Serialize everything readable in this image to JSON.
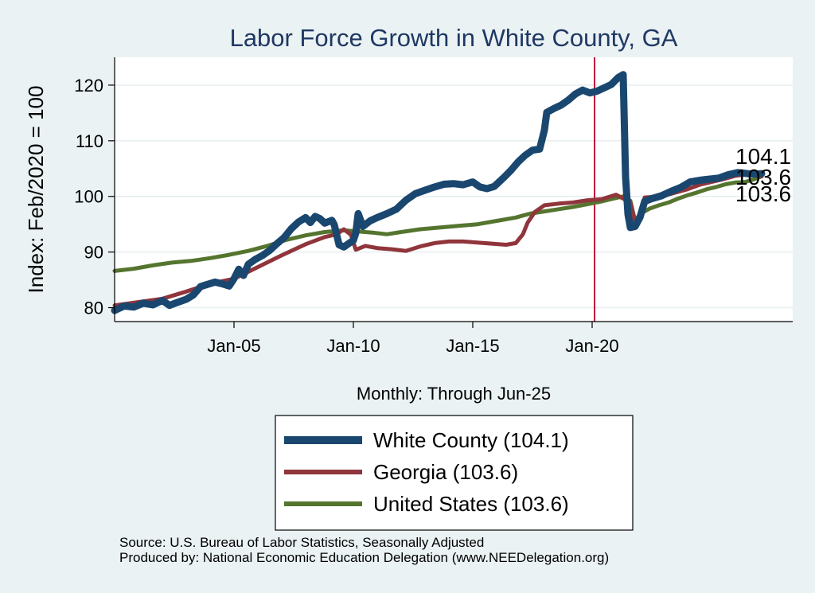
{
  "chart_data": {
    "type": "line",
    "title": "Labor Force Growth in White  County, GA",
    "ylabel": "Index: Feb/2020 = 100",
    "xlabel": "Monthly: Through Jun-25",
    "xlim": [
      2000.0,
      2028.4
    ],
    "ylim": [
      77.5,
      125
    ],
    "yticks": [
      80,
      90,
      100,
      110,
      120
    ],
    "xticks": [
      {
        "x": 2005,
        "label": "Jan-05"
      },
      {
        "x": 2010,
        "label": "Jan-10"
      },
      {
        "x": 2015,
        "label": "Jan-15"
      },
      {
        "x": 2020,
        "label": "Jan-20"
      }
    ],
    "vline": {
      "x": 2020.1,
      "color": "#c0143c"
    },
    "grid": true,
    "legend_position": "bottom",
    "series": [
      {
        "name": "White  County (104.1)",
        "end_label": "104.1",
        "color": "#1a476f",
        "width": 9,
        "points": [
          [
            2000.0,
            79.5
          ],
          [
            2000.4,
            80.3
          ],
          [
            2000.8,
            80.1
          ],
          [
            2001.2,
            80.8
          ],
          [
            2001.6,
            80.5
          ],
          [
            2002.0,
            81.3
          ],
          [
            2002.3,
            80.4
          ],
          [
            2002.6,
            80.9
          ],
          [
            2003.0,
            81.5
          ],
          [
            2003.3,
            82.3
          ],
          [
            2003.6,
            83.8
          ],
          [
            2003.9,
            84.2
          ],
          [
            2004.2,
            84.6
          ],
          [
            2004.5,
            84.3
          ],
          [
            2004.8,
            83.9
          ],
          [
            2005.0,
            85.2
          ],
          [
            2005.2,
            86.9
          ],
          [
            2005.4,
            85.8
          ],
          [
            2005.6,
            87.8
          ],
          [
            2005.9,
            88.7
          ],
          [
            2006.2,
            89.4
          ],
          [
            2006.5,
            90.3
          ],
          [
            2006.8,
            91.5
          ],
          [
            2007.1,
            92.6
          ],
          [
            2007.4,
            94.2
          ],
          [
            2007.7,
            95.4
          ],
          [
            2008.0,
            96.2
          ],
          [
            2008.2,
            95.3
          ],
          [
            2008.4,
            96.4
          ],
          [
            2008.6,
            96.0
          ],
          [
            2008.8,
            95.2
          ],
          [
            2009.1,
            95.7
          ],
          [
            2009.2,
            94.9
          ],
          [
            2009.4,
            91.3
          ],
          [
            2009.6,
            90.9
          ],
          [
            2009.8,
            91.5
          ],
          [
            2010.0,
            92.1
          ],
          [
            2010.1,
            93.4
          ],
          [
            2010.2,
            96.9
          ],
          [
            2010.4,
            94.6
          ],
          [
            2010.7,
            95.6
          ],
          [
            2011.0,
            96.2
          ],
          [
            2011.4,
            96.9
          ],
          [
            2011.8,
            97.7
          ],
          [
            2012.2,
            99.3
          ],
          [
            2012.6,
            100.5
          ],
          [
            2013.0,
            101.1
          ],
          [
            2013.4,
            101.7
          ],
          [
            2013.8,
            102.2
          ],
          [
            2014.2,
            102.3
          ],
          [
            2014.6,
            102.1
          ],
          [
            2015.0,
            102.6
          ],
          [
            2015.3,
            101.7
          ],
          [
            2015.6,
            101.4
          ],
          [
            2015.9,
            101.8
          ],
          [
            2016.3,
            103.4
          ],
          [
            2016.6,
            104.7
          ],
          [
            2016.9,
            106.2
          ],
          [
            2017.2,
            107.4
          ],
          [
            2017.5,
            108.3
          ],
          [
            2017.8,
            108.5
          ],
          [
            2018.0,
            111.9
          ],
          [
            2018.1,
            115.1
          ],
          [
            2018.4,
            115.8
          ],
          [
            2018.7,
            116.4
          ],
          [
            2019.0,
            117.3
          ],
          [
            2019.3,
            118.4
          ],
          [
            2019.6,
            119.1
          ],
          [
            2019.9,
            118.6
          ],
          [
            2020.2,
            118.9
          ],
          [
            2020.5,
            119.5
          ],
          [
            2020.8,
            120.1
          ],
          [
            2021.1,
            121.4
          ],
          [
            2021.3,
            121.9
          ],
          [
            2021.4,
            103.5
          ],
          [
            2021.5,
            96.8
          ],
          [
            2021.6,
            94.4
          ],
          [
            2021.8,
            94.6
          ],
          [
            2022.0,
            96.2
          ],
          [
            2022.2,
            99.1
          ],
          [
            2022.5,
            99.6
          ],
          [
            2022.9,
            100.1
          ],
          [
            2023.3,
            100.9
          ],
          [
            2023.7,
            101.6
          ],
          [
            2024.1,
            102.6
          ],
          [
            2024.5,
            102.9
          ],
          [
            2024.9,
            103.1
          ],
          [
            2025.3,
            103.3
          ],
          [
            2025.7,
            103.9
          ],
          [
            2026.1,
            104.3
          ],
          [
            2026.5,
            104.1
          ],
          [
            2026.9,
            104.0
          ],
          [
            2027.1,
            104.1
          ]
        ]
      },
      {
        "name": "Georgia (103.6)",
        "end_label": "103.6",
        "color": "#90353b",
        "width": 5,
        "points": [
          [
            2000.0,
            80.4
          ],
          [
            2001.0,
            81.0
          ],
          [
            2002.0,
            81.6
          ],
          [
            2003.0,
            82.9
          ],
          [
            2004.0,
            84.3
          ],
          [
            2005.0,
            85.2
          ],
          [
            2006.0,
            87.3
          ],
          [
            2007.0,
            89.4
          ],
          [
            2008.0,
            91.4
          ],
          [
            2008.8,
            92.7
          ],
          [
            2009.3,
            93.2
          ],
          [
            2009.6,
            94.1
          ],
          [
            2009.9,
            93.1
          ],
          [
            2010.1,
            90.4
          ],
          [
            2010.5,
            91.1
          ],
          [
            2011.0,
            90.7
          ],
          [
            2011.6,
            90.5
          ],
          [
            2012.2,
            90.2
          ],
          [
            2012.8,
            91.0
          ],
          [
            2013.4,
            91.6
          ],
          [
            2014.0,
            91.9
          ],
          [
            2014.6,
            91.9
          ],
          [
            2015.2,
            91.7
          ],
          [
            2015.8,
            91.5
          ],
          [
            2016.4,
            91.3
          ],
          [
            2016.8,
            91.6
          ],
          [
            2017.1,
            93.2
          ],
          [
            2017.3,
            95.3
          ],
          [
            2017.6,
            97.2
          ],
          [
            2018.0,
            98.4
          ],
          [
            2018.6,
            98.7
          ],
          [
            2019.2,
            98.9
          ],
          [
            2019.8,
            99.3
          ],
          [
            2020.4,
            99.5
          ],
          [
            2021.0,
            100.3
          ],
          [
            2021.6,
            98.9
          ],
          [
            2021.8,
            95.1
          ],
          [
            2022.0,
            96.8
          ],
          [
            2022.2,
            99.8
          ],
          [
            2022.6,
            99.9
          ],
          [
            2023.0,
            100.1
          ],
          [
            2023.5,
            100.7
          ],
          [
            2024.0,
            101.3
          ],
          [
            2024.5,
            102.1
          ],
          [
            2025.0,
            102.6
          ],
          [
            2025.5,
            103.1
          ],
          [
            2026.0,
            103.7
          ],
          [
            2026.5,
            104.0
          ],
          [
            2026.9,
            103.7
          ],
          [
            2027.1,
            103.6
          ]
        ]
      },
      {
        "name": "United States (103.6)",
        "end_label": "103.6",
        "color": "#55752f",
        "width": 5,
        "points": [
          [
            2000.0,
            86.6
          ],
          [
            2000.8,
            87.0
          ],
          [
            2001.6,
            87.6
          ],
          [
            2002.4,
            88.1
          ],
          [
            2003.2,
            88.4
          ],
          [
            2004.0,
            88.9
          ],
          [
            2004.8,
            89.5
          ],
          [
            2005.6,
            90.2
          ],
          [
            2006.4,
            91.1
          ],
          [
            2007.2,
            92.2
          ],
          [
            2008.0,
            93.0
          ],
          [
            2008.8,
            93.6
          ],
          [
            2009.6,
            93.9
          ],
          [
            2010.2,
            93.7
          ],
          [
            2010.8,
            93.5
          ],
          [
            2011.4,
            93.2
          ],
          [
            2012.0,
            93.6
          ],
          [
            2012.8,
            94.1
          ],
          [
            2013.6,
            94.4
          ],
          [
            2014.4,
            94.7
          ],
          [
            2015.2,
            95.0
          ],
          [
            2016.0,
            95.6
          ],
          [
            2016.8,
            96.2
          ],
          [
            2017.4,
            96.9
          ],
          [
            2018.0,
            97.3
          ],
          [
            2018.6,
            97.7
          ],
          [
            2019.2,
            98.1
          ],
          [
            2019.8,
            98.6
          ],
          [
            2020.4,
            99.1
          ],
          [
            2020.9,
            99.6
          ],
          [
            2021.3,
            100.0
          ],
          [
            2021.6,
            99.2
          ],
          [
            2021.8,
            95.6
          ],
          [
            2022.0,
            96.8
          ],
          [
            2022.4,
            97.8
          ],
          [
            2022.8,
            98.4
          ],
          [
            2023.2,
            98.9
          ],
          [
            2023.6,
            99.6
          ],
          [
            2024.0,
            100.2
          ],
          [
            2024.4,
            100.7
          ],
          [
            2024.8,
            101.3
          ],
          [
            2025.2,
            101.7
          ],
          [
            2025.6,
            102.2
          ],
          [
            2026.0,
            102.5
          ],
          [
            2026.4,
            102.6
          ],
          [
            2026.8,
            103.1
          ],
          [
            2027.1,
            103.6
          ]
        ]
      }
    ]
  },
  "footer": {
    "source": "Source: U.S. Bureau of Labor Statistics, Seasonally Adjusted",
    "producer": "Produced by: National Economic Education Delegation (www.NEEDelegation.org)"
  }
}
